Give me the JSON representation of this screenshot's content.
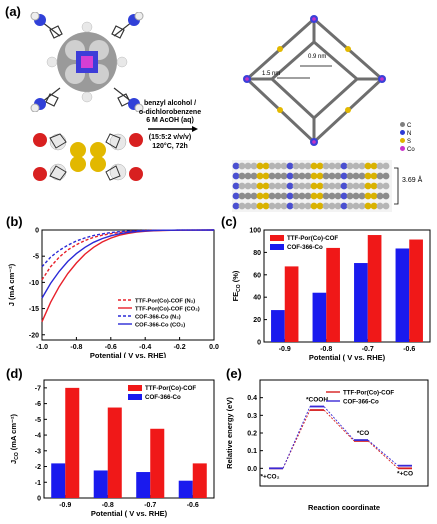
{
  "panels": {
    "a": "(a)",
    "b": "(b)",
    "c": "(c)",
    "d": "(d)",
    "e": "(e)"
  },
  "synthesis": {
    "line1": "benzyl alcohol /",
    "line2": "o-dichlorobenzene",
    "line3": "6 M AcOH (aq)",
    "line4": "(15:5:2 v/v/v)",
    "line5": "120°C,  72h"
  },
  "structure": {
    "dist1": "0.9 nm",
    "dist2": "1.5 nm",
    "stack_dist": "3.69 Å",
    "legend": [
      "C",
      "N",
      "S",
      "Co"
    ],
    "colors": {
      "C": "#7f7f7f",
      "N": "#2e3bd6",
      "S": "#e0b400",
      "Co": "#cc33cc",
      "O": "#d82020",
      "H": "#eeeeee"
    }
  },
  "chart_data": [
    {
      "id": "b",
      "type": "line",
      "xlabel": "Potential ( V vs. RHE)",
      "ylabel": "J (mA cm⁻²)",
      "xlim": [
        -1.0,
        0.0
      ],
      "ylim": [
        -21,
        0
      ],
      "xticks": [
        "-1.0",
        "-0.8",
        "-0.6",
        "-0.4",
        "-0.2",
        "0.0"
      ],
      "yticks": [
        "0",
        "-5",
        "-10",
        "-15",
        "-20"
      ],
      "series": [
        {
          "name": "TTF-Por(Co)-COF  (N₂)",
          "color": "#e8202a",
          "dash": true,
          "x": [
            -1.0,
            -0.95,
            -0.9,
            -0.85,
            -0.8,
            -0.75,
            -0.7,
            -0.65,
            -0.6,
            -0.55,
            -0.5,
            -0.45,
            -0.4,
            -0.35,
            -0.3,
            -0.25,
            -0.2,
            -0.1,
            0.0
          ],
          "y": [
            -9.5,
            -7.0,
            -5.2,
            -3.8,
            -2.8,
            -2.0,
            -1.4,
            -1.0,
            -0.7,
            -0.45,
            -0.3,
            -0.2,
            -0.12,
            -0.08,
            -0.05,
            -0.03,
            -0.02,
            -0.01,
            0.0
          ]
        },
        {
          "name": "TTF-Por(Co)-COF  (CO₂)",
          "color": "#e8202a",
          "dash": false,
          "x": [
            -1.0,
            -0.95,
            -0.9,
            -0.85,
            -0.8,
            -0.75,
            -0.7,
            -0.65,
            -0.6,
            -0.55,
            -0.5,
            -0.45,
            -0.4,
            -0.35,
            -0.3,
            -0.25,
            -0.2,
            -0.1,
            0.0
          ],
          "y": [
            -17.5,
            -13.8,
            -10.8,
            -8.3,
            -6.3,
            -4.6,
            -3.3,
            -2.3,
            -1.55,
            -1.0,
            -0.65,
            -0.4,
            -0.25,
            -0.15,
            -0.1,
            -0.06,
            -0.03,
            -0.01,
            0.0
          ]
        },
        {
          "name": "COF-366-Co (N₂)",
          "color": "#2a2ad6",
          "dash": true,
          "x": [
            -1.0,
            -0.95,
            -0.9,
            -0.85,
            -0.8,
            -0.75,
            -0.7,
            -0.65,
            -0.6,
            -0.55,
            -0.5,
            -0.45,
            -0.4,
            -0.35,
            -0.3,
            -0.25,
            -0.2,
            -0.1,
            0.0
          ],
          "y": [
            -7.0,
            -5.2,
            -3.9,
            -2.9,
            -2.1,
            -1.5,
            -1.05,
            -0.75,
            -0.5,
            -0.33,
            -0.22,
            -0.14,
            -0.09,
            -0.06,
            -0.04,
            -0.03,
            -0.02,
            -0.01,
            0.0
          ]
        },
        {
          "name": "COF-366-Co (CO₂)",
          "color": "#2a2ad6",
          "dash": false,
          "x": [
            -1.0,
            -0.95,
            -0.9,
            -0.85,
            -0.8,
            -0.75,
            -0.7,
            -0.65,
            -0.6,
            -0.55,
            -0.5,
            -0.45,
            -0.4,
            -0.35,
            -0.3,
            -0.25,
            -0.2,
            -0.1,
            0.0
          ],
          "y": [
            -13.0,
            -10.2,
            -7.9,
            -6.0,
            -4.5,
            -3.3,
            -2.35,
            -1.65,
            -1.1,
            -0.72,
            -0.45,
            -0.28,
            -0.17,
            -0.1,
            -0.06,
            -0.04,
            -0.02,
            -0.01,
            0.0
          ]
        }
      ]
    },
    {
      "id": "c",
      "type": "bar",
      "xlabel": "Potential ( V vs. RHE)",
      "ylabel": "FE",
      "ylabel_sub": "CO",
      "ylabel_unit": " (%)",
      "ylim": [
        0,
        100
      ],
      "yticks": [
        "0",
        "20",
        "40",
        "60",
        "80",
        "100"
      ],
      "categories": [
        "-0.9",
        "-0.8",
        "-0.7",
        "-0.6"
      ],
      "series": [
        {
          "name": "COF-366-Co",
          "color": "#1a1aee",
          "values": [
            28.5,
            44.0,
            70.5,
            83.5
          ]
        },
        {
          "name": "TTF-Por(Co)-COF",
          "color": "#f01818",
          "values": [
            67.5,
            84.0,
            95.5,
            91.5
          ]
        }
      ],
      "legend_order": [
        "TTF-Por(Co)-COF",
        "COF-366-Co"
      ]
    },
    {
      "id": "d",
      "type": "bar",
      "xlabel": "Potential ( V vs. RHE)",
      "ylabel": "J",
      "ylabel_sub": "CO",
      "ylabel_unit": " (mA cm⁻²)",
      "ylim": [
        0,
        -7.5
      ],
      "yticks": [
        "0",
        "-1",
        "-2",
        "-3",
        "-4",
        "-5",
        "-6",
        "-7"
      ],
      "categories": [
        "-0.9",
        "-0.8",
        "-0.7",
        "-0.6"
      ],
      "series": [
        {
          "name": "COF-366-Co",
          "color": "#1a1aee",
          "values": [
            -2.2,
            -1.75,
            -1.65,
            -1.1
          ]
        },
        {
          "name": "TTF-Por(Co)-COF",
          "color": "#f01818",
          "values": [
            -7.0,
            -5.75,
            -4.4,
            -2.2
          ]
        }
      ],
      "legend_order": [
        "TTF-Por(Co)-COF",
        "COF-366-Co"
      ]
    },
    {
      "id": "e",
      "type": "line",
      "xlabel": "Reaction coordinate",
      "ylabel": "Relative energy (eV)",
      "ylim": [
        -0.1,
        0.5
      ],
      "yticks": [
        "0.0",
        "0.1",
        "0.2",
        "0.3",
        "0.4"
      ],
      "states": [
        "*+CO₂",
        "*COOH",
        "*CO",
        "*+CO"
      ],
      "series": [
        {
          "name": "TTF-Por(Co)-COF",
          "color": "#d62020",
          "values": [
            0.0,
            0.33,
            0.155,
            0.0
          ]
        },
        {
          "name": "COF-366-Co",
          "color": "#3b2ad6",
          "values": [
            0.0,
            0.35,
            0.16,
            0.015
          ]
        }
      ]
    }
  ]
}
